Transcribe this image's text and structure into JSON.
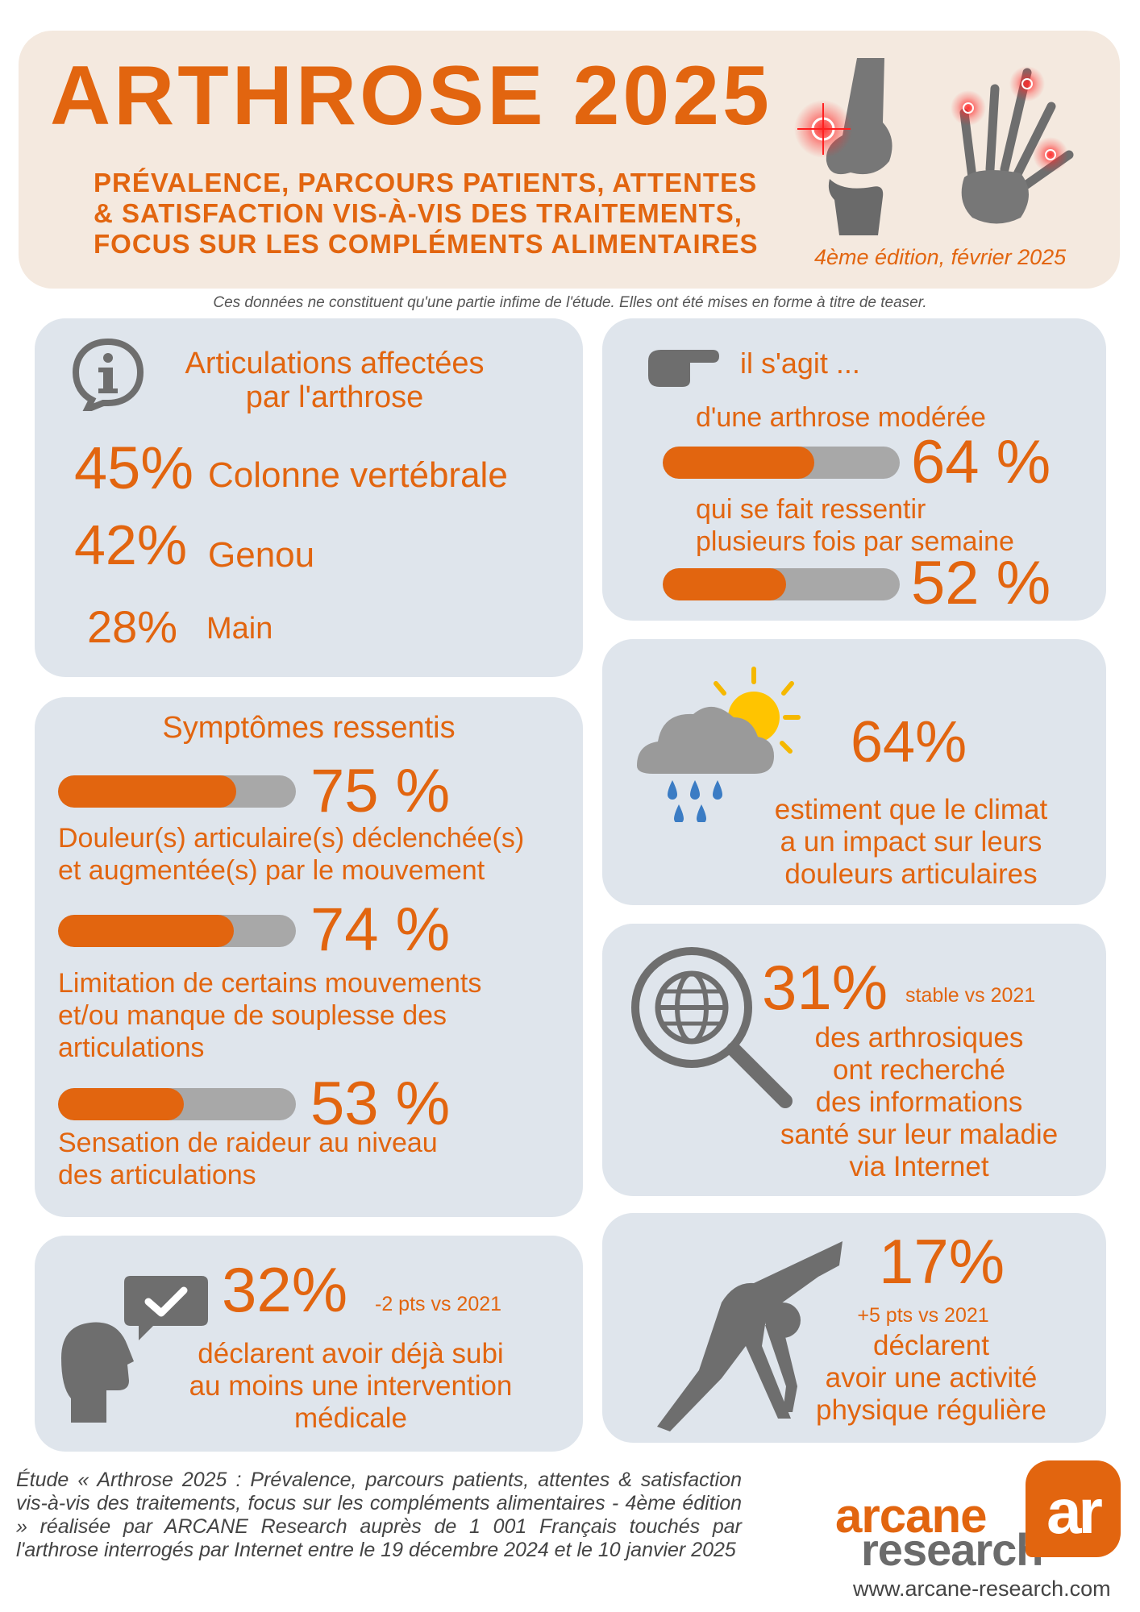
{
  "header": {
    "title": "ARTHROSE 2025",
    "subtitle_lines": [
      "PRÉVALENCE, PARCOURS PATIENTS, ATTENTES",
      "& SATISFACTION VIS-À-VIS DES TRAITEMENTS,",
      "FOCUS SUR LES COMPLÉMENTS ALIMENTAIRES"
    ],
    "edition": "4ème édition, février 2025",
    "disclaimer": "Ces données ne constituent qu'une partie infime de l'étude. Elles ont été mises en forme à titre de teaser."
  },
  "articulations": {
    "title_lines": [
      "Articulations affectées",
      "par l'arthrose"
    ],
    "items": [
      {
        "pct": "45%",
        "label": "Colonne vertébrale"
      },
      {
        "pct": "42%",
        "label": "Genou"
      },
      {
        "pct": "28%",
        "label": "Main"
      }
    ]
  },
  "il_sagit": {
    "title": "il s'agit ...",
    "items": [
      {
        "label_lines": [
          "d'une arthrose modérée"
        ],
        "pct": "64 %",
        "value": 0.64
      },
      {
        "label_lines": [
          "qui se fait ressentir",
          "plusieurs fois par semaine"
        ],
        "pct": "52 %",
        "value": 0.52
      }
    ]
  },
  "symptomes": {
    "title": "Symptômes ressentis",
    "items": [
      {
        "pct": "75 %",
        "value": 0.75,
        "label_lines": [
          "Douleur(s) articulaire(s) déclenchée(s)",
          "et augmentée(s) par le mouvement"
        ]
      },
      {
        "pct": "74 %",
        "value": 0.74,
        "label_lines": [
          "Limitation de certains mouvements",
          "et/ou  manque de souplesse des",
          "articulations"
        ]
      },
      {
        "pct": "53 %",
        "value": 0.53,
        "label_lines": [
          "Sensation de raideur au niveau",
          "des articulations"
        ]
      }
    ]
  },
  "climat": {
    "pct": "64%",
    "label_lines": [
      "estiment que le climat",
      "a un impact sur leurs",
      "douleurs articulaires"
    ]
  },
  "internet": {
    "pct": "31%",
    "note": "stable vs 2021",
    "label_lines": [
      "des arthrosiques",
      "ont recherché",
      "des informations",
      "santé sur leur maladie",
      "via Internet"
    ]
  },
  "intervention": {
    "pct": "32%",
    "note": "-2 pts vs 2021",
    "label_lines": [
      "déclarent avoir déjà subi",
      "au moins une intervention",
      "médicale"
    ]
  },
  "activite": {
    "pct": "17%",
    "note": "+5 pts vs 2021",
    "label_lines": [
      "déclarent",
      "avoir une activité",
      "physique régulière"
    ]
  },
  "footer": {
    "text": "Étude « Arthrose 2025 : Prévalence, parcours patients, attentes & satisfaction vis-à-vis des traitements, focus sur les compléments alimentaires - 4ème édition » réalisée par ARCANE Research auprès de 1 001 Français touchés par l'arthrose interrogés par Internet entre le 19 décembre 2024 et le 10 janvier 2025",
    "logo_top": "arcane",
    "logo_bottom": "research",
    "logo_mark": "ar",
    "website": "www.arcane-research.com"
  },
  "colors": {
    "accent": "#e2650f",
    "card": "#dfe5ec",
    "header_bg": "#f4e9df",
    "bar_track": "#a8a8a8",
    "icon_grey": "#6e6e6e"
  }
}
